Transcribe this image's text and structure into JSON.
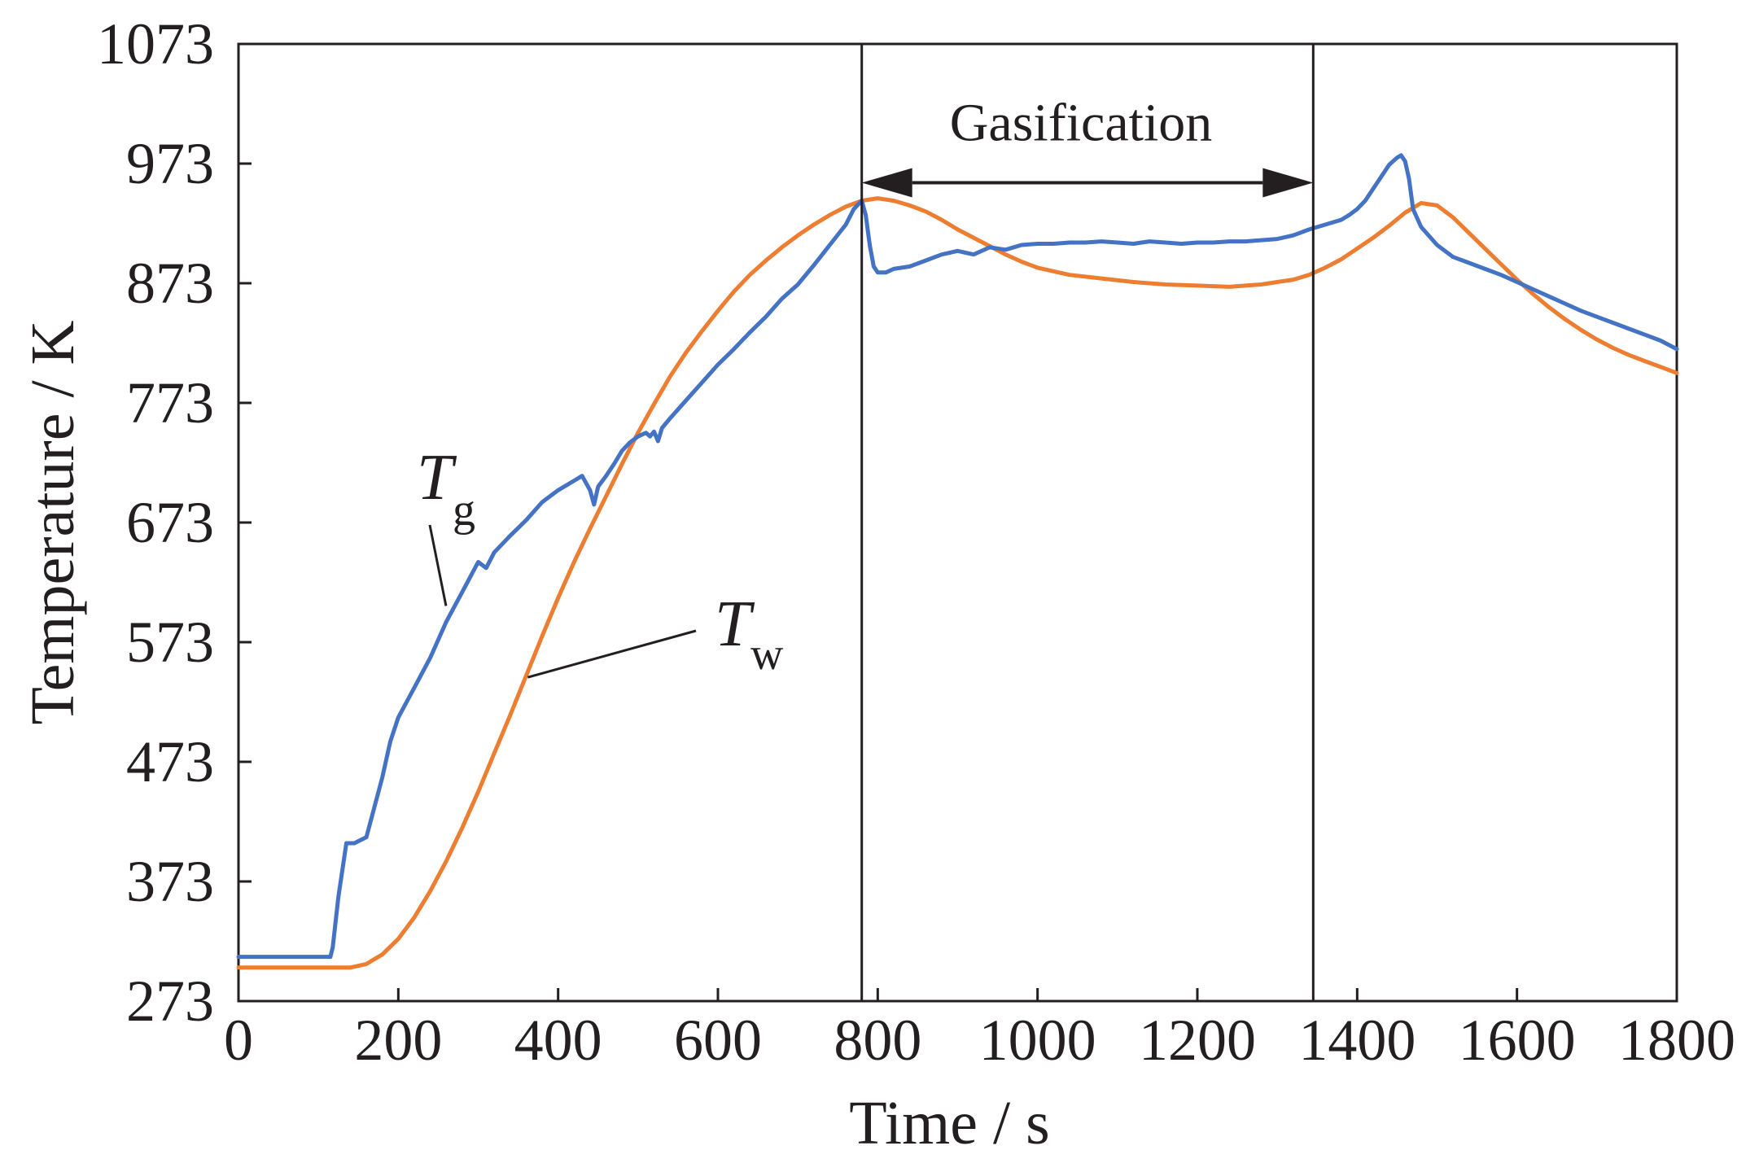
{
  "chart_data": {
    "type": "line",
    "xlabel": "Time / s",
    "ylabel": "Temperature / K",
    "xlim": [
      0,
      1800
    ],
    "ylim": [
      273,
      1073
    ],
    "xticks": [
      0,
      200,
      400,
      600,
      800,
      1000,
      1200,
      1400,
      1600,
      1800
    ],
    "yticks": [
      273,
      373,
      473,
      573,
      673,
      773,
      873,
      973,
      1073
    ],
    "xtick_labels": [
      "0",
      "200",
      "400",
      "600",
      "800",
      "1000",
      "1200",
      "1400",
      "1600",
      "1800"
    ],
    "ytick_labels": [
      "273",
      "373",
      "473",
      "573",
      "673",
      "773",
      "873",
      "973",
      "1073"
    ],
    "grid": false,
    "series": [
      {
        "name": "Tg",
        "symbol": "T",
        "subscript": "g",
        "color": "#4472c4",
        "x": [
          0,
          115,
          118,
          125,
          135,
          145,
          160,
          170,
          180,
          190,
          200,
          220,
          240,
          260,
          280,
          300,
          310,
          320,
          340,
          360,
          380,
          400,
          420,
          430,
          440,
          445,
          450,
          460,
          470,
          480,
          490,
          500,
          510,
          515,
          520,
          525,
          530,
          540,
          560,
          580,
          600,
          620,
          640,
          660,
          680,
          700,
          720,
          740,
          760,
          770,
          780,
          785,
          790,
          795,
          800,
          810,
          820,
          840,
          860,
          880,
          900,
          920,
          940,
          960,
          980,
          1000,
          1020,
          1040,
          1060,
          1080,
          1100,
          1120,
          1140,
          1160,
          1180,
          1200,
          1220,
          1240,
          1260,
          1280,
          1300,
          1320,
          1340,
          1360,
          1380,
          1390,
          1400,
          1410,
          1420,
          1430,
          1440,
          1450,
          1455,
          1460,
          1465,
          1470,
          1480,
          1500,
          1520,
          1540,
          1560,
          1580,
          1600,
          1620,
          1640,
          1660,
          1680,
          1700,
          1720,
          1740,
          1760,
          1780,
          1800
        ],
        "y": [
          310,
          310,
          318,
          360,
          405,
          405,
          410,
          435,
          460,
          490,
          510,
          535,
          560,
          590,
          615,
          640,
          635,
          648,
          662,
          675,
          690,
          700,
          708,
          712,
          700,
          688,
          703,
          712,
          722,
          733,
          740,
          745,
          748,
          745,
          749,
          741,
          752,
          760,
          775,
          790,
          805,
          818,
          832,
          845,
          860,
          872,
          888,
          905,
          922,
          935,
          942,
          930,
          905,
          887,
          882,
          882,
          885,
          887,
          892,
          897,
          900,
          897,
          903,
          901,
          905,
          906,
          906,
          907,
          907,
          908,
          907,
          906,
          908,
          907,
          906,
          907,
          907,
          908,
          908,
          909,
          910,
          913,
          918,
          922,
          926,
          930,
          935,
          942,
          952,
          962,
          972,
          978,
          980,
          975,
          960,
          935,
          920,
          905,
          895,
          890,
          885,
          880,
          874,
          868,
          862,
          856,
          850,
          845,
          840,
          835,
          830,
          825,
          818
        ]
      },
      {
        "name": "Tw",
        "symbol": "T",
        "subscript": "w",
        "color": "#ed7d31",
        "x": [
          0,
          140,
          160,
          180,
          200,
          220,
          240,
          260,
          280,
          300,
          320,
          340,
          360,
          380,
          400,
          420,
          440,
          460,
          480,
          500,
          520,
          540,
          560,
          580,
          600,
          620,
          640,
          660,
          680,
          700,
          720,
          740,
          760,
          780,
          800,
          820,
          840,
          860,
          880,
          900,
          920,
          940,
          960,
          980,
          1000,
          1040,
          1080,
          1120,
          1160,
          1200,
          1240,
          1260,
          1280,
          1300,
          1320,
          1340,
          1360,
          1380,
          1400,
          1420,
          1440,
          1460,
          1480,
          1500,
          1520,
          1540,
          1560,
          1580,
          1600,
          1620,
          1640,
          1660,
          1680,
          1700,
          1720,
          1740,
          1760,
          1780,
          1800
        ],
        "y": [
          301,
          301,
          304,
          312,
          325,
          343,
          365,
          390,
          418,
          448,
          480,
          512,
          545,
          578,
          610,
          640,
          668,
          695,
          722,
          748,
          772,
          795,
          815,
          833,
          850,
          866,
          880,
          892,
          903,
          913,
          922,
          930,
          937,
          942,
          944,
          942,
          938,
          933,
          926,
          918,
          911,
          904,
          897,
          891,
          886,
          880,
          877,
          874,
          872,
          871,
          870,
          871,
          872,
          874,
          876,
          880,
          886,
          893,
          902,
          911,
          921,
          932,
          940,
          938,
          928,
          915,
          902,
          889,
          876,
          864,
          853,
          843,
          834,
          826,
          819,
          813,
          808,
          803,
          798
        ]
      }
    ],
    "annotations": [
      {
        "text": "Gasification",
        "type": "double-arrow",
        "x_start": 780,
        "x_end": 1345,
        "y": 957
      },
      {
        "type": "vline",
        "x": 780
      },
      {
        "type": "vline",
        "x": 1345
      },
      {
        "type": "leader",
        "series": "Tg",
        "from_x": 275,
        "to_x": 255
      },
      {
        "type": "leader",
        "series": "Tw",
        "from_x": 360,
        "to_x": 560
      }
    ]
  }
}
